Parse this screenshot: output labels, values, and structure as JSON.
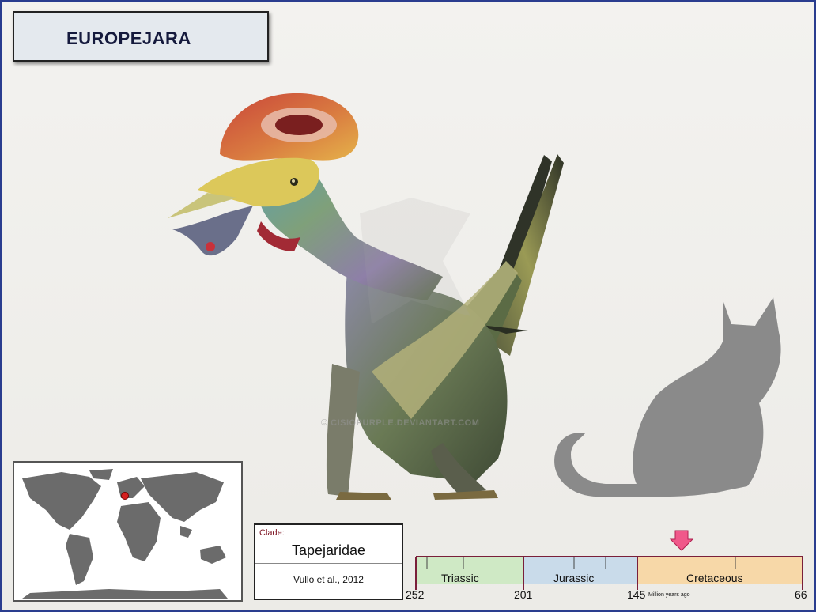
{
  "title": "EUROPEJARA",
  "watermark": "© CISIOPURPLE.DEVIANTART.COM",
  "clade": {
    "label": "Clade:",
    "name": "Tapejaridae",
    "citation": "Vullo et al., 2012"
  },
  "timeline": {
    "periods": [
      {
        "name": "Triassic",
        "color": "#cfe9c5"
      },
      {
        "name": "Jurassic",
        "color": "#c9dbea"
      },
      {
        "name": "Cretaceous",
        "color": "#f7d8a8"
      }
    ],
    "ticks": [
      "252",
      "201",
      "145",
      "66"
    ],
    "unit": "Million years ago",
    "marker_color": "#f0588a"
  },
  "map": {
    "location_color": "#d62020"
  },
  "icons": [
    "pterosaur-illustration",
    "cat-silhouette-icon",
    "world-map-icon",
    "location-dot-icon",
    "down-arrow-icon"
  ]
}
